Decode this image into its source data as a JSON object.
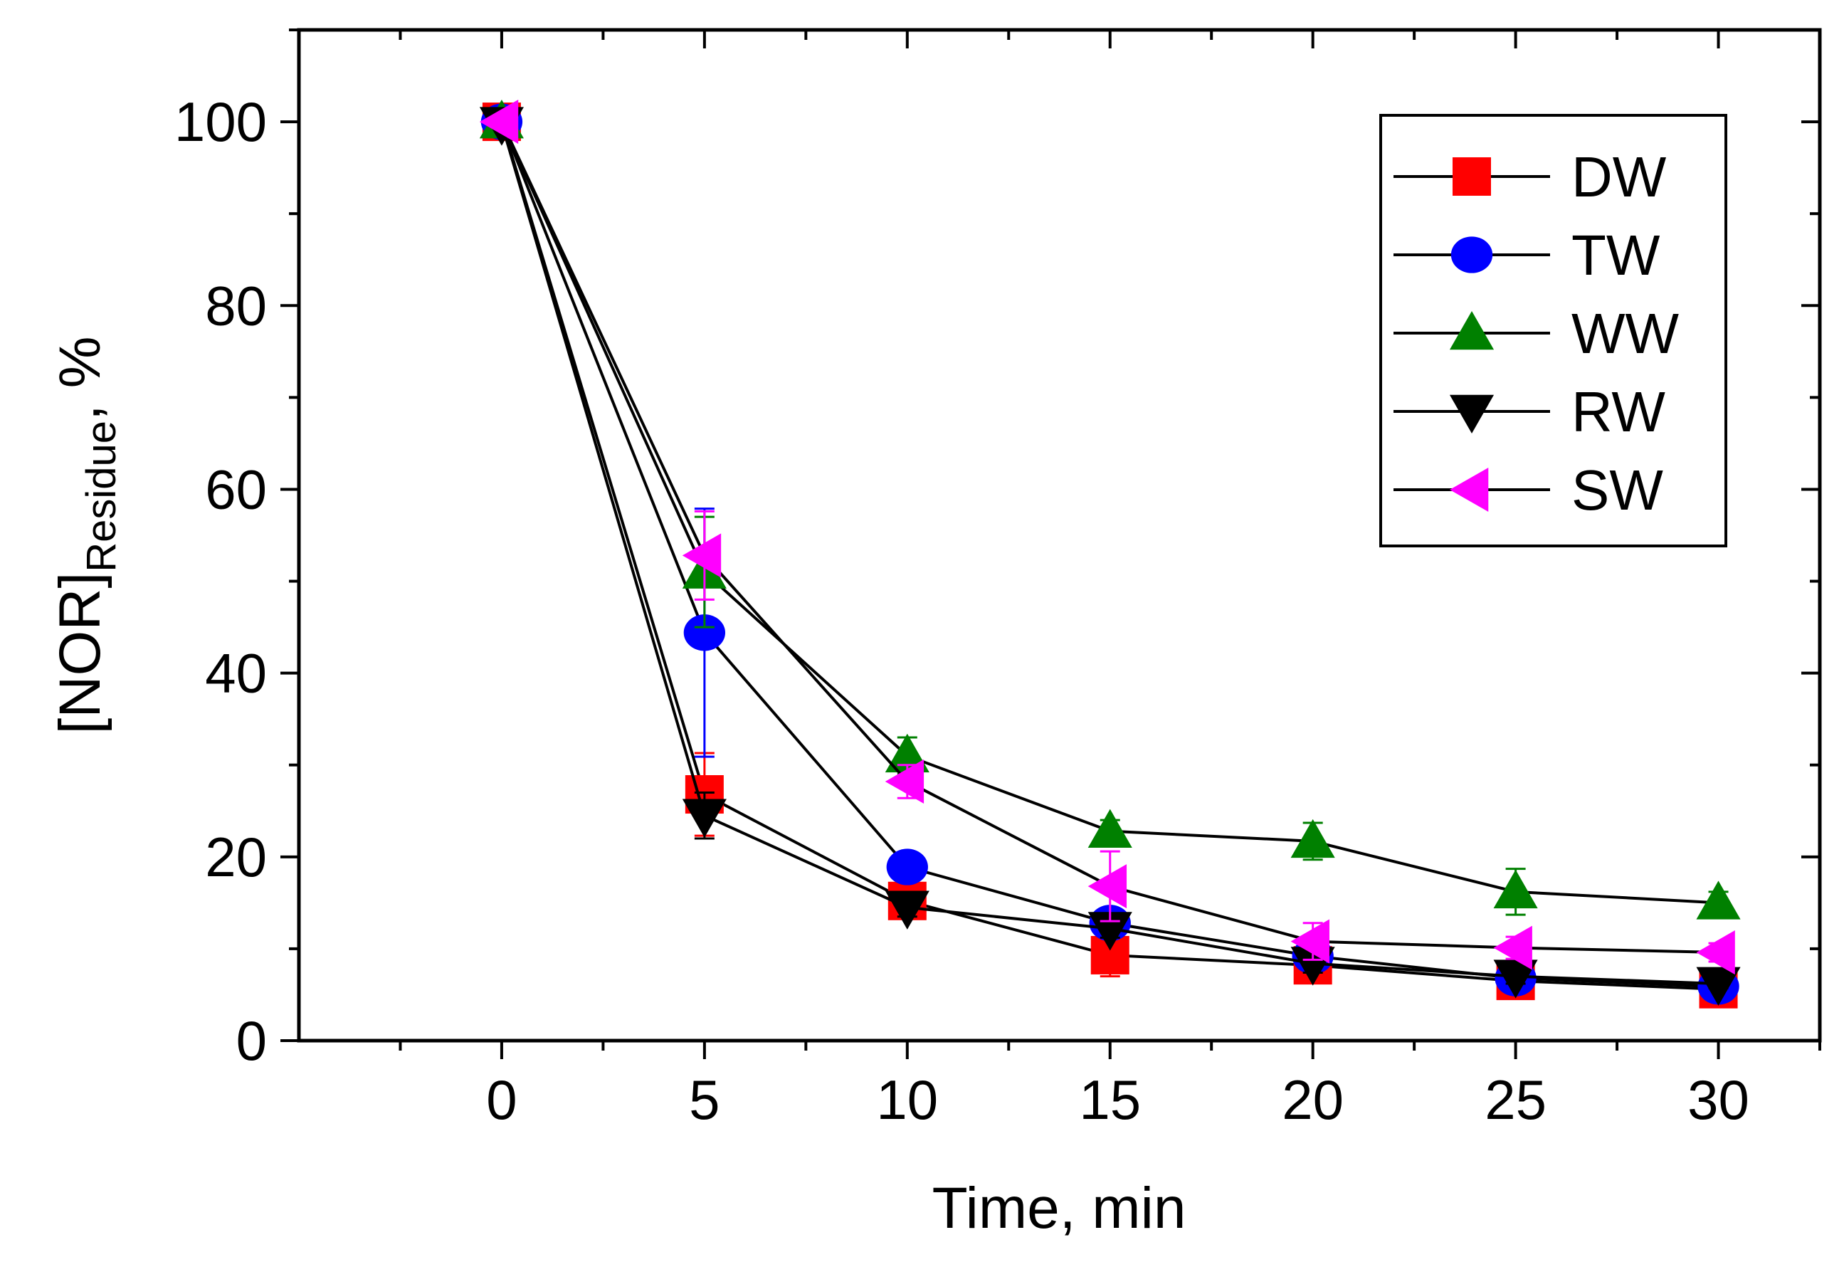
{
  "chart_data": {
    "type": "line",
    "title": "",
    "xlabel": "Time, min",
    "ylabel": {
      "main": "[NOR]",
      "sub": "Residue",
      "suffix": ", %"
    },
    "xlim": [
      -5,
      32.5
    ],
    "ylim": [
      0,
      110
    ],
    "xticks": [
      0,
      5,
      10,
      15,
      20,
      25,
      30
    ],
    "xtick_labels": [
      "0",
      "5",
      "10",
      "15",
      "20",
      "25",
      "30"
    ],
    "yticks": [
      0,
      20,
      40,
      60,
      80,
      100
    ],
    "ytick_labels": [
      "0",
      "20",
      "40",
      "60",
      "80",
      "100"
    ],
    "x": [
      0,
      5,
      10,
      15,
      20,
      25,
      30
    ],
    "legend_position": "top-right",
    "series": [
      {
        "name": "DW",
        "marker": "square",
        "color": "#ff0000",
        "values": [
          100,
          26.8,
          15.2,
          9.3,
          8.2,
          6.5,
          5.6
        ],
        "errors": [
          0,
          4.5,
          1.2,
          2.3,
          1.8,
          0.8,
          0.5
        ]
      },
      {
        "name": "TW",
        "marker": "circle",
        "color": "#0000ff",
        "values": [
          100,
          44.4,
          18.9,
          12.8,
          9.2,
          6.8,
          5.9
        ],
        "errors": [
          0,
          13.5,
          1.2,
          1.2,
          1.2,
          0.8,
          0.5
        ]
      },
      {
        "name": "WW",
        "marker": "triangle-up",
        "color": "#008000",
        "values": [
          100,
          51.0,
          31.0,
          22.8,
          21.7,
          16.2,
          15.0
        ],
        "errors": [
          0,
          6.0,
          2.0,
          1.2,
          2.0,
          2.5,
          1.2
        ]
      },
      {
        "name": "RW",
        "marker": "triangle-down",
        "color": "#000000",
        "values": [
          99.8,
          24.5,
          14.5,
          12.2,
          8.4,
          7.0,
          6.2
        ],
        "errors": [
          0,
          2.5,
          1.0,
          1.0,
          1.0,
          0.8,
          0.5
        ]
      },
      {
        "name": "SW",
        "marker": "triangle-left",
        "color": "#ff00ff",
        "values": [
          100,
          52.8,
          28.2,
          16.8,
          10.8,
          10.1,
          9.6
        ],
        "errors": [
          0,
          4.8,
          1.8,
          3.8,
          2.0,
          1.2,
          1.0
        ]
      }
    ]
  }
}
